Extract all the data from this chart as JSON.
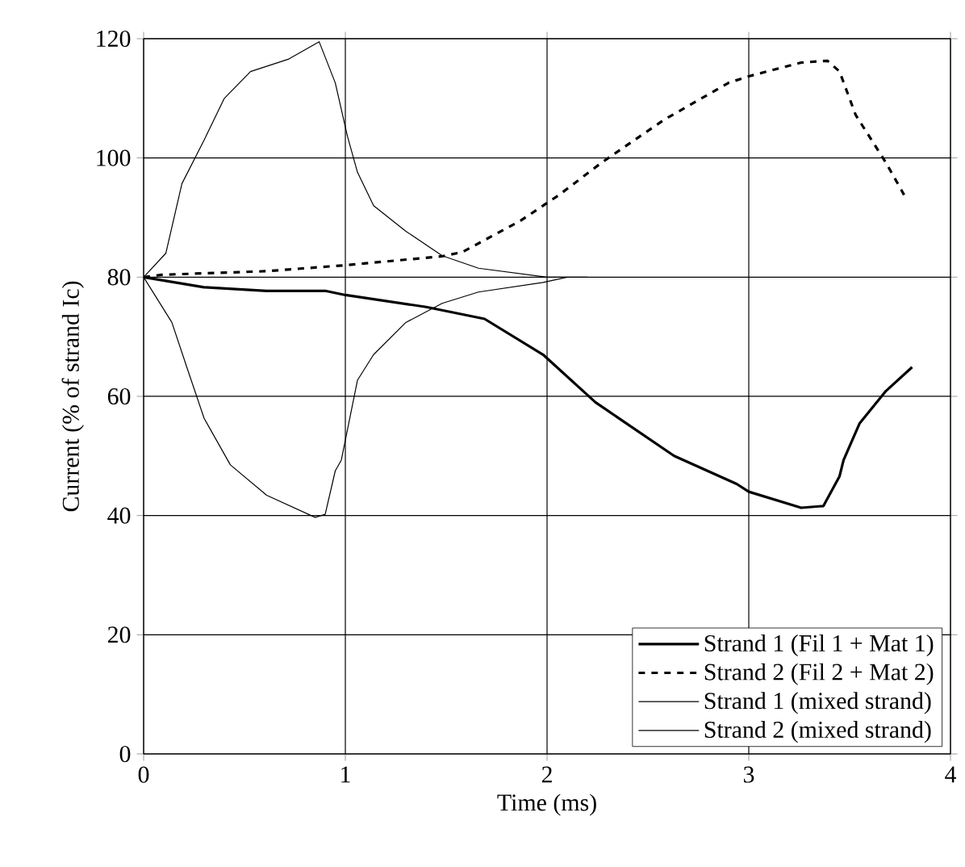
{
  "chart_data": {
    "type": "line",
    "xlabel": "Time (ms)",
    "ylabel": "Current (% of strand Ic)",
    "xlim": [
      0,
      4
    ],
    "xticks": [
      0,
      1,
      2,
      3,
      4
    ],
    "ylim": [
      0,
      120
    ],
    "yticks": [
      0,
      20,
      40,
      60,
      80,
      100,
      120
    ],
    "grid": true,
    "legend": "bottom right",
    "marker": "none",
    "series": [
      {
        "name": "Strand 1 (Fil 1 + Mat 1)",
        "color": "#000000",
        "line_style": "solid",
        "x": [
          0,
          0.3,
          0.61,
          0.9,
          1.0,
          1.4,
          1.69,
          1.98,
          2.24,
          2.63,
          2.94,
          3.0,
          3.26,
          3.37,
          3.45,
          3.47,
          3.55,
          3.68,
          3.81
        ],
        "values": [
          80,
          78.3,
          77.7,
          77.7,
          77,
          75,
          73,
          67,
          59,
          50,
          45.3,
          44,
          41.3,
          41.6,
          46.6,
          49.3,
          55.5,
          60.9,
          64.9
        ]
      },
      {
        "name": "Strand 2 (Fil 2 + Mat 2)",
        "color": "#000000",
        "line_style": "dashed",
        "x": [
          0,
          0.09,
          0.61,
          1.0,
          1.48,
          1.58,
          1.87,
          2.06,
          2.27,
          2.58,
          2.9,
          3.0,
          3.26,
          3.39,
          3.45,
          3.53,
          3.68,
          3.77
        ],
        "values": [
          80,
          80.4,
          81,
          82,
          83.5,
          84.2,
          89.5,
          93.8,
          99.2,
          106.4,
          112.6,
          113.7,
          116,
          116.3,
          114.5,
          107.2,
          99.2,
          93.8
        ]
      },
      {
        "name": "Strand 1 (mixed strand)",
        "color": "#000000",
        "line_style": "solid",
        "x": [
          0,
          0.11,
          0.19,
          0.3,
          0.4,
          0.53,
          0.72,
          0.87,
          0.95,
          1.01,
          1.06,
          1.14,
          1.3,
          1.48,
          1.66,
          2.0,
          2.2
        ],
        "values": [
          80,
          84,
          95.7,
          103,
          110,
          114.5,
          116.6,
          119.5,
          112.6,
          103.7,
          97.6,
          92,
          87.7,
          83.6,
          81.5,
          80,
          80
        ]
      },
      {
        "name": "Strand 2 (mixed strand)",
        "color": "#000000",
        "line_style": "solid",
        "x": [
          0,
          0.14,
          0.22,
          0.3,
          0.43,
          0.61,
          0.85,
          0.9,
          0.95,
          0.98,
          1.06,
          1.14,
          1.3,
          1.48,
          1.66,
          1.98,
          2.1
        ],
        "values": [
          80,
          72.4,
          64.3,
          56.3,
          48.5,
          43.4,
          39.7,
          40.2,
          47.5,
          49.3,
          62.7,
          67,
          72.4,
          75.6,
          77.5,
          79.1,
          80
        ]
      }
    ]
  }
}
